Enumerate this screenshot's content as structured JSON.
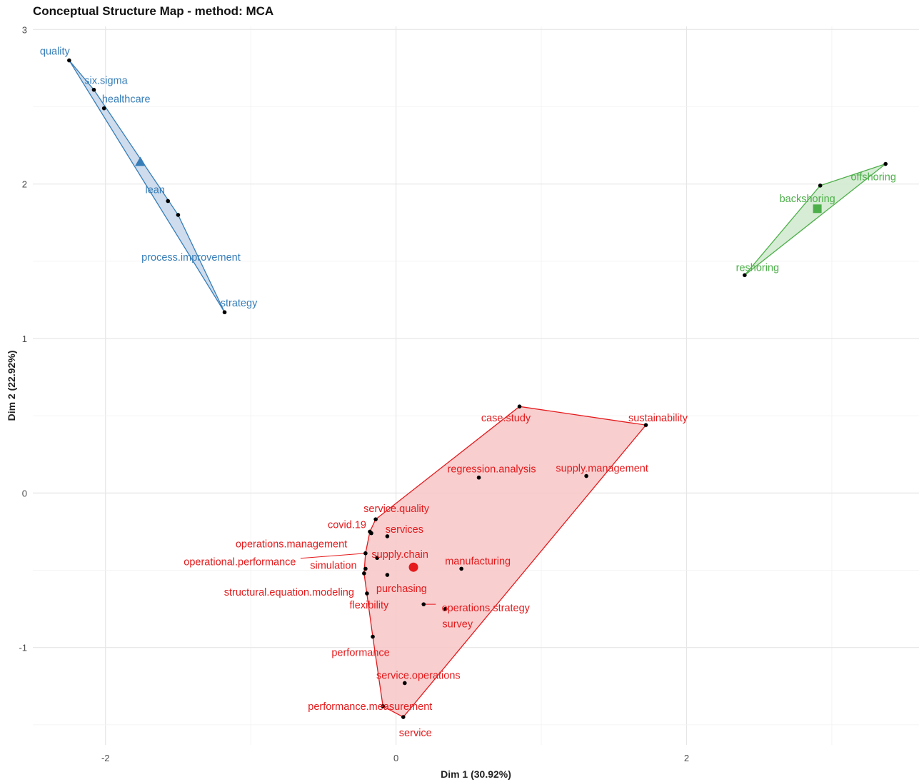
{
  "chart_data": {
    "type": "scatter",
    "title": "Conceptual Structure Map - method: MCA",
    "xlabel": "Dim 1 (30.92%)",
    "ylabel": "Dim 2 (22.92%)",
    "xlim": [
      -2.5,
      3.6
    ],
    "ylim": [
      -1.63,
      3.02
    ],
    "x_ticks": [
      -2,
      0,
      2
    ],
    "y_ticks": [
      -1,
      0,
      1,
      2,
      3
    ],
    "grid": true,
    "clusters": [
      {
        "color": "#377eb8",
        "fill": "#c6d6ea",
        "centroid_shape": "triangle",
        "centroid": [
          -1.76,
          2.14
        ],
        "points": [
          {
            "label": "quality",
            "x": -2.25,
            "y": 2.8
          },
          {
            "label": "six.sigma",
            "x": -2.08,
            "y": 2.61
          },
          {
            "label": "healthcare",
            "x": -2.01,
            "y": 2.49
          },
          {
            "label": "lean",
            "x": -1.57,
            "y": 1.89
          },
          {
            "label": "process.improvement",
            "x": -1.5,
            "y": 1.8
          },
          {
            "label": "strategy",
            "x": -1.18,
            "y": 1.17
          }
        ]
      },
      {
        "color": "#4daf4a",
        "fill": "#cfe9cd",
        "centroid_shape": "square",
        "centroid": [
          2.9,
          1.84
        ],
        "points": [
          {
            "label": "offshoring",
            "x": 3.37,
            "y": 2.13
          },
          {
            "label": "backshoring",
            "x": 2.92,
            "y": 1.99
          },
          {
            "label": "reshoring",
            "x": 2.4,
            "y": 1.41
          }
        ]
      },
      {
        "color": "#e41a1c",
        "fill": "#f7c6c7",
        "centroid_shape": "circle",
        "centroid": [
          0.12,
          -0.48
        ],
        "points": [
          {
            "label": "case.study",
            "x": 0.85,
            "y": 0.56
          },
          {
            "label": "sustainability",
            "x": 1.72,
            "y": 0.44
          },
          {
            "label": "regression.analysis",
            "x": 0.57,
            "y": 0.1
          },
          {
            "label": "supply.management",
            "x": 1.31,
            "y": 0.11
          },
          {
            "label": "service.quality",
            "x": -0.14,
            "y": -0.17
          },
          {
            "label": "covid.19",
            "x": -0.18,
            "y": -0.25
          },
          {
            "label": "services",
            "x": -0.06,
            "y": -0.28
          },
          {
            "label": "operations.management",
            "x": -0.17,
            "y": -0.26
          },
          {
            "label": "operational.performance",
            "x": -0.21,
            "y": -0.39
          },
          {
            "label": "supply.chain",
            "x": -0.13,
            "y": -0.42
          },
          {
            "label": "simulation",
            "x": -0.21,
            "y": -0.49
          },
          {
            "label": "manufacturing",
            "x": 0.45,
            "y": -0.49
          },
          {
            "label": "structural.equation.modeling",
            "x": -0.22,
            "y": -0.52
          },
          {
            "label": "purchasing",
            "x": -0.06,
            "y": -0.53
          },
          {
            "label": "operations.strategy",
            "x": 0.19,
            "y": -0.72
          },
          {
            "label": "survey",
            "x": 0.34,
            "y": -0.75
          },
          {
            "label": "flexibility",
            "x": -0.2,
            "y": -0.65
          },
          {
            "label": "performance",
            "x": -0.16,
            "y": -0.93
          },
          {
            "label": "service.operations",
            "x": 0.06,
            "y": -1.23
          },
          {
            "label": "performance.measurement",
            "x": -0.09,
            "y": -1.38
          },
          {
            "label": "service",
            "x": 0.05,
            "y": -1.45
          }
        ]
      }
    ]
  }
}
